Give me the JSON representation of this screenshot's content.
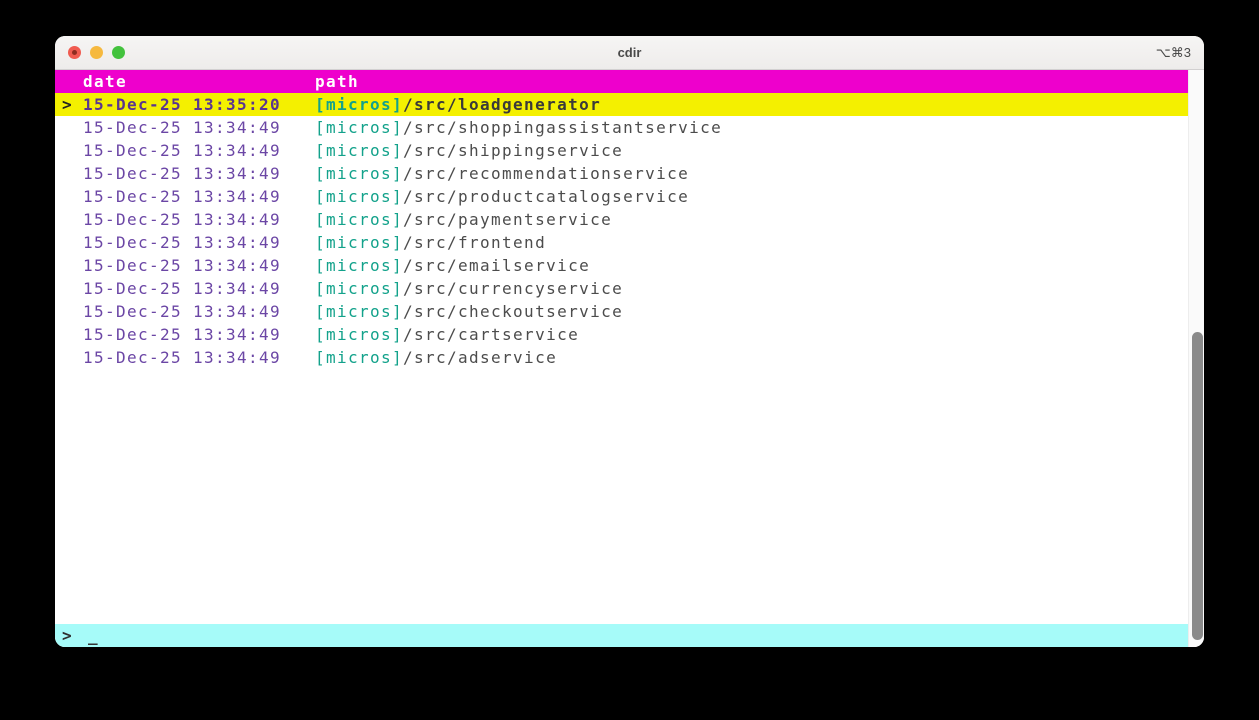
{
  "window": {
    "title": "cdir",
    "shortcut": "⌥⌘3"
  },
  "table": {
    "columns": {
      "date": "date",
      "path": "path"
    },
    "selected_marker": ">",
    "rows": [
      {
        "selected": true,
        "date": "15-Dec-25 13:35:20",
        "tag": "[micros]",
        "path": "/src/loadgenerator"
      },
      {
        "selected": false,
        "date": "15-Dec-25 13:34:49",
        "tag": "[micros]",
        "path": "/src/shoppingassistantservice"
      },
      {
        "selected": false,
        "date": "15-Dec-25 13:34:49",
        "tag": "[micros]",
        "path": "/src/shippingservice"
      },
      {
        "selected": false,
        "date": "15-Dec-25 13:34:49",
        "tag": "[micros]",
        "path": "/src/recommendationservice"
      },
      {
        "selected": false,
        "date": "15-Dec-25 13:34:49",
        "tag": "[micros]",
        "path": "/src/productcatalogservice"
      },
      {
        "selected": false,
        "date": "15-Dec-25 13:34:49",
        "tag": "[micros]",
        "path": "/src/paymentservice"
      },
      {
        "selected": false,
        "date": "15-Dec-25 13:34:49",
        "tag": "[micros]",
        "path": "/src/frontend"
      },
      {
        "selected": false,
        "date": "15-Dec-25 13:34:49",
        "tag": "[micros]",
        "path": "/src/emailservice"
      },
      {
        "selected": false,
        "date": "15-Dec-25 13:34:49",
        "tag": "[micros]",
        "path": "/src/currencyservice"
      },
      {
        "selected": false,
        "date": "15-Dec-25 13:34:49",
        "tag": "[micros]",
        "path": "/src/checkoutservice"
      },
      {
        "selected": false,
        "date": "15-Dec-25 13:34:49",
        "tag": "[micros]",
        "path": "/src/cartservice"
      },
      {
        "selected": false,
        "date": "15-Dec-25 13:34:49",
        "tag": "[micros]",
        "path": "/src/adservice"
      }
    ]
  },
  "prompt": {
    "symbol": ">",
    "cursor": "_"
  },
  "colors": {
    "header_bg": "#ee00cc",
    "selected_bg": "#f4f000",
    "prompt_bg": "#a6fbf9",
    "date_text": "#6b46a5",
    "tag_text": "#13a28b",
    "path_text": "#4c4c4c",
    "scroll_thumb": "#8a8a8a"
  }
}
